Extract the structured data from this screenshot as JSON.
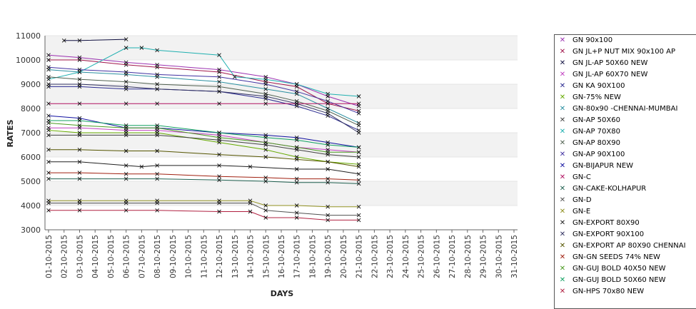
{
  "chart_data": {
    "type": "line",
    "title": "",
    "xlabel": "DAYS",
    "ylabel": "RATES",
    "ylim": [
      3000,
      11000
    ],
    "yticks": [
      3000,
      4000,
      5000,
      6000,
      7000,
      8000,
      9000,
      10000,
      11000
    ],
    "categories": [
      "01-10-2015",
      "02-10-2015",
      "03-10-2015",
      "04-10-2015",
      "05-10-2015",
      "06-10-2015",
      "07-10-2015",
      "08-10-2015",
      "09-10-2015",
      "10-10-2015",
      "11-10-2015",
      "12-10-2015",
      "13-10-2015",
      "14-10-2015",
      "15-10-2015",
      "16-10-2015",
      "17-10-2015",
      "18-10-2015",
      "19-10-2015",
      "20-10-2015",
      "21-10-2015",
      "22-10-2015",
      "23-10-2015",
      "24-10-2015",
      "25-10-2015",
      "26-10-2015",
      "27-10-2015",
      "28-10-2015",
      "29-10-2015",
      "30-10-2015",
      "31-10-2015"
    ],
    "grid": "alternating horizontal bands",
    "legend_position": "right",
    "series": [
      {
        "name": "GN 90x100",
        "color": "#9b30b0",
        "points": [
          [
            0,
            10200
          ],
          [
            2,
            10100
          ],
          [
            5,
            9900
          ],
          [
            7,
            9800
          ],
          [
            11,
            9600
          ],
          [
            14,
            9300
          ],
          [
            16,
            9000
          ],
          [
            18,
            8500
          ],
          [
            20,
            8100
          ]
        ]
      },
      {
        "name": "GN JL+P NUT MIX 90x100 AP",
        "color": "#a0154a",
        "points": [
          [
            0,
            10000
          ],
          [
            2,
            10000
          ],
          [
            5,
            9800
          ],
          [
            7,
            9700
          ],
          [
            11,
            9500
          ],
          [
            14,
            9100
          ],
          [
            16,
            8900
          ],
          [
            18,
            8200
          ],
          [
            20,
            7900
          ]
        ]
      },
      {
        "name": "GN JL-AP 50X60 NEW",
        "color": "#101040",
        "points": [
          [
            1,
            10800
          ],
          [
            2,
            10800
          ],
          [
            5,
            10850
          ]
        ]
      },
      {
        "name": "GN JL-AP 60X70 NEW",
        "color": "#c040c0",
        "points": [
          [
            0,
            7200
          ],
          [
            2,
            7200
          ],
          [
            5,
            7100
          ],
          [
            7,
            7100
          ],
          [
            11,
            6900
          ],
          [
            14,
            6600
          ],
          [
            16,
            6400
          ],
          [
            18,
            6300
          ],
          [
            20,
            6200
          ]
        ]
      },
      {
        "name": "GN KA 90X100",
        "color": "#2a2a90",
        "points": [
          [
            0,
            8900
          ],
          [
            2,
            8900
          ],
          [
            5,
            8800
          ],
          [
            7,
            8800
          ],
          [
            11,
            8700
          ],
          [
            14,
            8400
          ],
          [
            16,
            8100
          ],
          [
            18,
            7700
          ],
          [
            20,
            7100
          ]
        ]
      },
      {
        "name": "GN-75% NEW",
        "color": "#66aa00",
        "points": [
          [
            0,
            7100
          ],
          [
            2,
            7000
          ],
          [
            5,
            7000
          ],
          [
            7,
            7000
          ],
          [
            11,
            6600
          ],
          [
            14,
            6300
          ],
          [
            16,
            6000
          ],
          [
            18,
            5800
          ],
          [
            20,
            5700
          ]
        ]
      },
      {
        "name": "GN-80x90 -CHENNAI-MUMBAI",
        "color": "#2a8fa0",
        "points": [
          [
            0,
            9600
          ],
          [
            2,
            9500
          ],
          [
            5,
            9400
          ],
          [
            7,
            9300
          ],
          [
            11,
            9100
          ],
          [
            14,
            8800
          ],
          [
            16,
            8600
          ],
          [
            18,
            8000
          ],
          [
            20,
            7400
          ]
        ]
      },
      {
        "name": "GN-AP 50X60",
        "color": "#404040",
        "points": [
          [
            0,
            6900
          ],
          [
            2,
            6900
          ],
          [
            5,
            6900
          ],
          [
            7,
            6900
          ],
          [
            11,
            6700
          ],
          [
            14,
            6500
          ],
          [
            16,
            6300
          ],
          [
            18,
            6100
          ],
          [
            20,
            6000
          ]
        ]
      },
      {
        "name": "GN-AP 70X80",
        "color": "#20b0b0",
        "points": [
          [
            0,
            9200
          ],
          [
            2,
            9500
          ],
          [
            5,
            10500
          ],
          [
            6,
            10500
          ],
          [
            7,
            10400
          ],
          [
            11,
            10200
          ],
          [
            12,
            9300
          ],
          [
            14,
            9200
          ],
          [
            16,
            9000
          ],
          [
            18,
            8600
          ],
          [
            20,
            8500
          ]
        ]
      },
      {
        "name": "GN-AP 80X90",
        "color": "#506050",
        "points": [
          [
            0,
            9300
          ],
          [
            2,
            9200
          ],
          [
            5,
            9100
          ],
          [
            7,
            9000
          ],
          [
            11,
            8900
          ],
          [
            14,
            8600
          ],
          [
            16,
            8300
          ],
          [
            18,
            7900
          ],
          [
            20,
            7300
          ]
        ]
      },
      {
        "name": "GN-AP 90X100",
        "color": "#4030a0",
        "points": [
          [
            0,
            9700
          ],
          [
            2,
            9600
          ],
          [
            5,
            9500
          ],
          [
            7,
            9400
          ],
          [
            11,
            9300
          ],
          [
            14,
            9000
          ],
          [
            16,
            8700
          ],
          [
            18,
            8300
          ],
          [
            20,
            7800
          ]
        ]
      },
      {
        "name": "GN-BIJAPUR NEW",
        "color": "#1010a0",
        "points": [
          [
            0,
            7700
          ],
          [
            2,
            7600
          ],
          [
            5,
            7200
          ],
          [
            7,
            7200
          ],
          [
            11,
            7000
          ],
          [
            14,
            6900
          ],
          [
            16,
            6800
          ],
          [
            18,
            6600
          ],
          [
            20,
            6400
          ]
        ]
      },
      {
        "name": "GN-C",
        "color": "#b01060",
        "points": [
          [
            0,
            8200
          ],
          [
            2,
            8200
          ],
          [
            5,
            8200
          ],
          [
            7,
            8200
          ],
          [
            11,
            8200
          ],
          [
            14,
            8200
          ],
          [
            16,
            8200
          ],
          [
            18,
            8200
          ],
          [
            20,
            8200
          ]
        ]
      },
      {
        "name": "GN-CAKE-KOLHAPUR",
        "color": "#206050",
        "points": [
          [
            0,
            5100
          ],
          [
            2,
            5100
          ],
          [
            5,
            5100
          ],
          [
            7,
            5100
          ],
          [
            11,
            5050
          ],
          [
            14,
            5000
          ],
          [
            16,
            4950
          ],
          [
            18,
            4950
          ],
          [
            20,
            4900
          ]
        ]
      },
      {
        "name": "GN-D",
        "color": "#505050",
        "points": [
          [
            0,
            4100
          ],
          [
            2,
            4100
          ],
          [
            5,
            4100
          ],
          [
            7,
            4100
          ],
          [
            11,
            4100
          ],
          [
            13,
            4100
          ],
          [
            14,
            3800
          ],
          [
            16,
            3700
          ],
          [
            18,
            3600
          ],
          [
            20,
            3600
          ]
        ]
      },
      {
        "name": "GN-E",
        "color": "#909020",
        "points": [
          [
            0,
            4200
          ],
          [
            2,
            4200
          ],
          [
            5,
            4200
          ],
          [
            7,
            4200
          ],
          [
            11,
            4200
          ],
          [
            13,
            4200
          ],
          [
            14,
            4000
          ],
          [
            16,
            4000
          ],
          [
            18,
            3950
          ],
          [
            20,
            3950
          ]
        ]
      },
      {
        "name": "GN-EXPORT 80X90",
        "color": "#202020",
        "points": [
          [
            0,
            5800
          ],
          [
            2,
            5800
          ],
          [
            5,
            5650
          ],
          [
            6,
            5600
          ],
          [
            7,
            5650
          ],
          [
            11,
            5650
          ],
          [
            13,
            5600
          ],
          [
            16,
            5500
          ],
          [
            18,
            5500
          ],
          [
            20,
            5300
          ]
        ]
      },
      {
        "name": "GN-EXPORT 90X100",
        "color": "#303060",
        "points": [
          [
            0,
            9000
          ],
          [
            2,
            9000
          ],
          [
            5,
            8900
          ],
          [
            7,
            8800
          ],
          [
            11,
            8700
          ],
          [
            14,
            8500
          ],
          [
            16,
            8200
          ],
          [
            18,
            7800
          ],
          [
            20,
            7000
          ]
        ]
      },
      {
        "name": "GN-EXPORT AP 80X90 CHENNAI",
        "color": "#555500",
        "points": [
          [
            0,
            6300
          ],
          [
            2,
            6300
          ],
          [
            5,
            6250
          ],
          [
            7,
            6250
          ],
          [
            11,
            6100
          ],
          [
            14,
            6000
          ],
          [
            16,
            5900
          ],
          [
            18,
            5800
          ],
          [
            20,
            5600
          ]
        ]
      },
      {
        "name": "GN-GN SEEDS 74% NEW",
        "color": "#a02010",
        "points": [
          [
            0,
            5350
          ],
          [
            2,
            5350
          ],
          [
            5,
            5300
          ],
          [
            7,
            5300
          ],
          [
            11,
            5200
          ],
          [
            14,
            5150
          ],
          [
            16,
            5100
          ],
          [
            18,
            5100
          ],
          [
            20,
            5050
          ]
        ]
      },
      {
        "name": "GN-GUJ BOLD 40X50 NEW",
        "color": "#4a9a20",
        "points": [
          [
            0,
            7400
          ],
          [
            2,
            7300
          ],
          [
            5,
            7200
          ],
          [
            7,
            7200
          ],
          [
            11,
            6800
          ],
          [
            14,
            6600
          ],
          [
            16,
            6400
          ],
          [
            18,
            6200
          ],
          [
            20,
            6200
          ]
        ]
      },
      {
        "name": "GN-GUJ BOLD 50X60 NEW",
        "color": "#10a060",
        "points": [
          [
            0,
            7500
          ],
          [
            2,
            7500
          ],
          [
            5,
            7300
          ],
          [
            7,
            7300
          ],
          [
            11,
            7000
          ],
          [
            14,
            6800
          ],
          [
            16,
            6700
          ],
          [
            18,
            6500
          ],
          [
            20,
            6400
          ]
        ]
      },
      {
        "name": "GN-HPS  70x80 NEW",
        "color": "#b02040",
        "points": [
          [
            0,
            3800
          ],
          [
            2,
            3800
          ],
          [
            5,
            3800
          ],
          [
            7,
            3800
          ],
          [
            11,
            3750
          ],
          [
            13,
            3750
          ],
          [
            14,
            3500
          ],
          [
            16,
            3500
          ],
          [
            18,
            3400
          ],
          [
            20,
            3400
          ]
        ]
      }
    ]
  }
}
